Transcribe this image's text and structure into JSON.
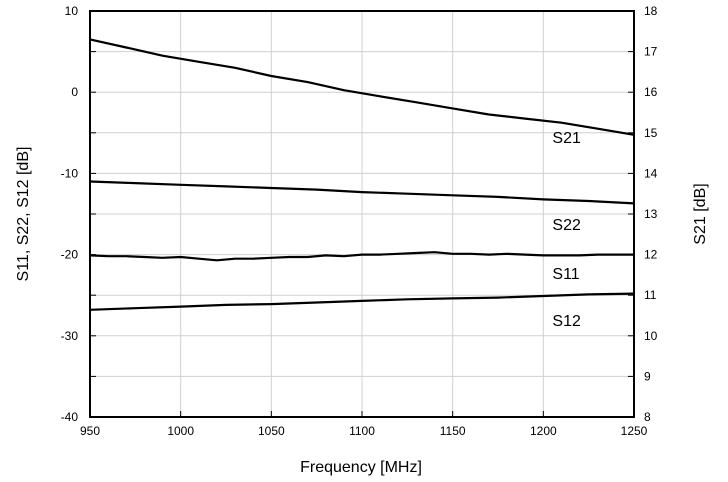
{
  "chart_data": {
    "type": "line",
    "title": "",
    "xlabel": "Frequency [MHz]",
    "ylabel_left": "S11, S22, S12 [dB]",
    "ylabel_right": "S21 [dB]",
    "xlim": [
      950,
      1250
    ],
    "ylim_left": [
      -40,
      10
    ],
    "ylim_right": [
      8,
      18
    ],
    "x_ticks": [
      "950",
      "1000",
      "1050",
      "1100",
      "1150",
      "1200",
      "1250"
    ],
    "y_left_ticks": [
      "10",
      "0",
      "-10",
      "-20",
      "-30",
      "-40"
    ],
    "y_right_ticks": [
      "18",
      "17",
      "16",
      "15",
      "14",
      "13",
      "12",
      "11",
      "10",
      "9",
      "8"
    ],
    "grid": true,
    "line_color": "#000000",
    "grid_color": "#d0d0d0",
    "series": [
      {
        "name": "S21",
        "axis": "right",
        "label_at": [
          1205,
          14.75
        ],
        "x": [
          950,
          970,
          990,
          1010,
          1030,
          1050,
          1070,
          1090,
          1110,
          1130,
          1150,
          1170,
          1190,
          1210,
          1230,
          1250
        ],
        "y": [
          17.3,
          17.1,
          16.9,
          16.75,
          16.6,
          16.4,
          16.25,
          16.05,
          15.9,
          15.75,
          15.6,
          15.45,
          15.35,
          15.25,
          15.1,
          14.95
        ]
      },
      {
        "name": "S22",
        "axis": "left",
        "label_at": [
          1205,
          -17
        ],
        "x": [
          950,
          975,
          1000,
          1025,
          1050,
          1075,
          1100,
          1125,
          1150,
          1175,
          1200,
          1225,
          1250
        ],
        "y": [
          -11.0,
          -11.2,
          -11.4,
          -11.6,
          -11.8,
          -12.0,
          -12.3,
          -12.5,
          -12.7,
          -12.9,
          -13.2,
          -13.4,
          -13.7
        ]
      },
      {
        "name": "S11",
        "axis": "left",
        "label_at": [
          1205,
          -23
        ],
        "x": [
          950,
          960,
          970,
          980,
          990,
          1000,
          1010,
          1020,
          1030,
          1040,
          1050,
          1060,
          1070,
          1080,
          1090,
          1100,
          1110,
          1120,
          1130,
          1140,
          1150,
          1160,
          1170,
          1180,
          1190,
          1200,
          1210,
          1220,
          1230,
          1240,
          1250
        ],
        "y": [
          -20.1,
          -20.2,
          -20.2,
          -20.3,
          -20.4,
          -20.3,
          -20.5,
          -20.7,
          -20.5,
          -20.5,
          -20.4,
          -20.3,
          -20.3,
          -20.1,
          -20.2,
          -20.0,
          -20.0,
          -19.9,
          -19.8,
          -19.7,
          -19.9,
          -19.9,
          -20.0,
          -19.9,
          -20.0,
          -20.1,
          -20.1,
          -20.1,
          -20.0,
          -20.0,
          -20.0
        ]
      },
      {
        "name": "S12",
        "axis": "left",
        "label_at": [
          1205,
          -28.8
        ],
        "x": [
          950,
          975,
          1000,
          1025,
          1050,
          1075,
          1100,
          1125,
          1150,
          1175,
          1200,
          1225,
          1250
        ],
        "y": [
          -26.8,
          -26.6,
          -26.4,
          -26.2,
          -26.1,
          -25.9,
          -25.7,
          -25.5,
          -25.4,
          -25.3,
          -25.1,
          -24.9,
          -24.8
        ]
      }
    ]
  }
}
